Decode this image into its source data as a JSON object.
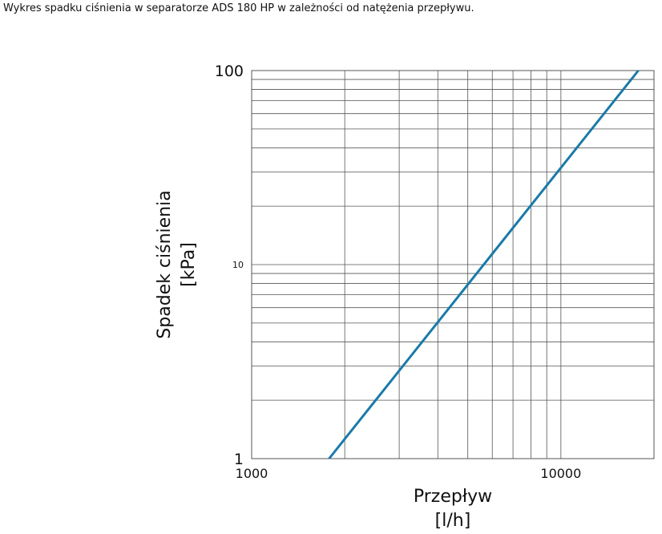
{
  "chart_data": {
    "type": "line",
    "title": "Wykres spadku ciśnienia w separatorze ADS 180 HP w zależności od natężenia przepływu.",
    "y_label_lines": [
      "Spadek ciśnienia",
      "[kPa]"
    ],
    "x_label_lines": [
      "Przepływ",
      "[l/h]"
    ],
    "x": [
      1780,
      17800
    ],
    "series": [
      {
        "name": "ADS 180 HP",
        "color": "#1a7aa8",
        "values": [
          1,
          100
        ]
      }
    ],
    "xlim": [
      1000,
      20000
    ],
    "ylim": [
      1,
      100
    ],
    "xticks": [
      1000,
      10000
    ],
    "yticks": [
      1,
      10,
      100
    ],
    "xscale": "log",
    "yscale": "log",
    "grid": true
  }
}
